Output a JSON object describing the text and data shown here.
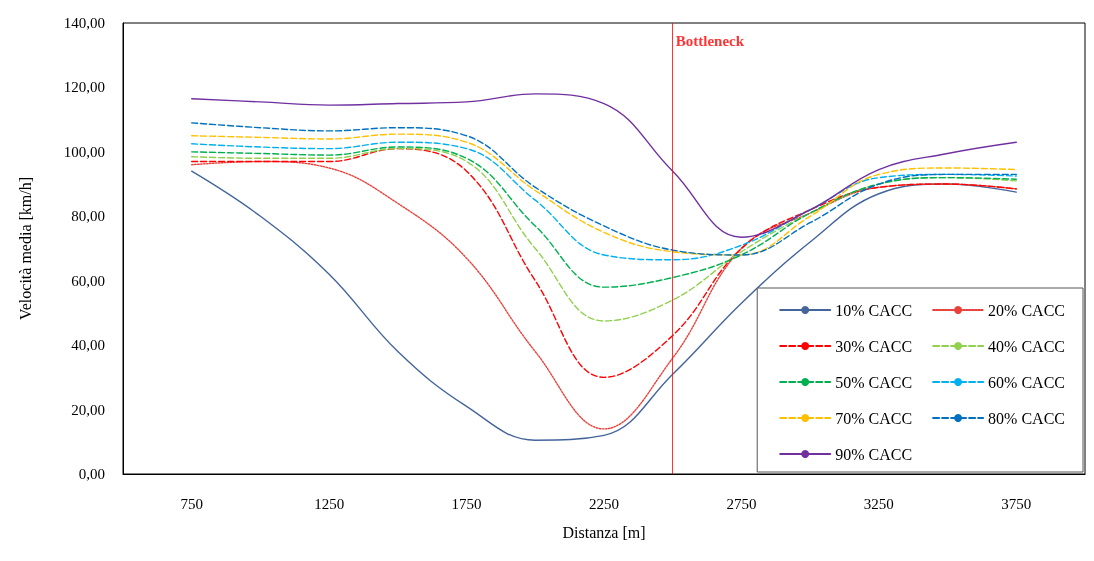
{
  "chart_data": {
    "type": "line",
    "xlabel": "Distanza [m]",
    "ylabel": "Velocità media [km/h]",
    "x": [
      750,
      1000,
      1250,
      1500,
      1750,
      2000,
      2250,
      2500,
      2750,
      3000,
      3250,
      3500,
      3750
    ],
    "xlim": [
      500,
      4000
    ],
    "xticks": [
      750,
      1250,
      1750,
      2250,
      2750,
      3250,
      3750
    ],
    "ylim": [
      0,
      140
    ],
    "yticks": [
      {
        "value": 0,
        "label": "0,00"
      },
      {
        "value": 20,
        "label": "20,00"
      },
      {
        "value": 40,
        "label": "40,00"
      },
      {
        "value": 60,
        "label": "60,00"
      },
      {
        "value": 80,
        "label": "80,00"
      },
      {
        "value": 100,
        "label": "100,00"
      },
      {
        "value": 120,
        "label": "120,00"
      },
      {
        "value": 140,
        "label": "140,00"
      }
    ],
    "grid": false,
    "legend": "bottom right",
    "marker": "none",
    "ref_lines": [
      {
        "axis": "x",
        "value": 2500,
        "label": "Bottleneck",
        "color": "#ff0000"
      }
    ],
    "series": [
      {
        "name": "10% CACC",
        "color": "#44659c",
        "line_style": "solid",
        "values": [
          94,
          80,
          62,
          38,
          21,
          10.5,
          12,
          31,
          53,
          72,
          87,
          90,
          87.5
        ]
      },
      {
        "name": "20% CACC",
        "color": "#e8413a",
        "line_style": "dotted",
        "values": [
          96,
          97,
          95,
          84,
          67,
          38,
          14,
          36,
          70,
          81,
          89,
          90,
          88.5
        ]
      },
      {
        "name": "30% CACC",
        "color": "#ff0000",
        "line_style": "dashed",
        "values": [
          97,
          97,
          97,
          101,
          94,
          60,
          30,
          43,
          70,
          82,
          89,
          90,
          88.5
        ]
      },
      {
        "name": "40% CACC",
        "color": "#92d050",
        "line_style": "dashed",
        "values": [
          98.5,
          98,
          98,
          101,
          97,
          70,
          47.5,
          54,
          69,
          81,
          90,
          92,
          91
        ]
      },
      {
        "name": "50% CACC",
        "color": "#00b050",
        "line_style": "dashed",
        "values": [
          100,
          99.5,
          99,
          101.5,
          98,
          77,
          58,
          61,
          68,
          81,
          90,
          92,
          91.5
        ]
      },
      {
        "name": "60% CACC",
        "color": "#00b0f0",
        "line_style": "dashed",
        "values": [
          102.5,
          101.5,
          101,
          103,
          101,
          85,
          68,
          66.5,
          71,
          82,
          92,
          93,
          92.5
        ]
      },
      {
        "name": "70% CACC",
        "color": "#ffc000",
        "line_style": "dashed",
        "values": [
          105,
          104.5,
          104,
          105.5,
          103,
          88,
          75,
          69,
          68,
          80,
          93,
          95,
          94.5
        ]
      },
      {
        "name": "80% CACC",
        "color": "#0070c0",
        "line_style": "dashed",
        "values": [
          109,
          107.5,
          106.5,
          107.5,
          105,
          89,
          77,
          69.5,
          68,
          78,
          90,
          93,
          93
        ]
      },
      {
        "name": "90% CACC",
        "color": "#7030a0",
        "line_style": "solid",
        "values": [
          116.5,
          115.5,
          114.5,
          115,
          115.5,
          118,
          115,
          94,
          73.5,
          82,
          94.5,
          99.5,
          103
        ]
      }
    ]
  }
}
